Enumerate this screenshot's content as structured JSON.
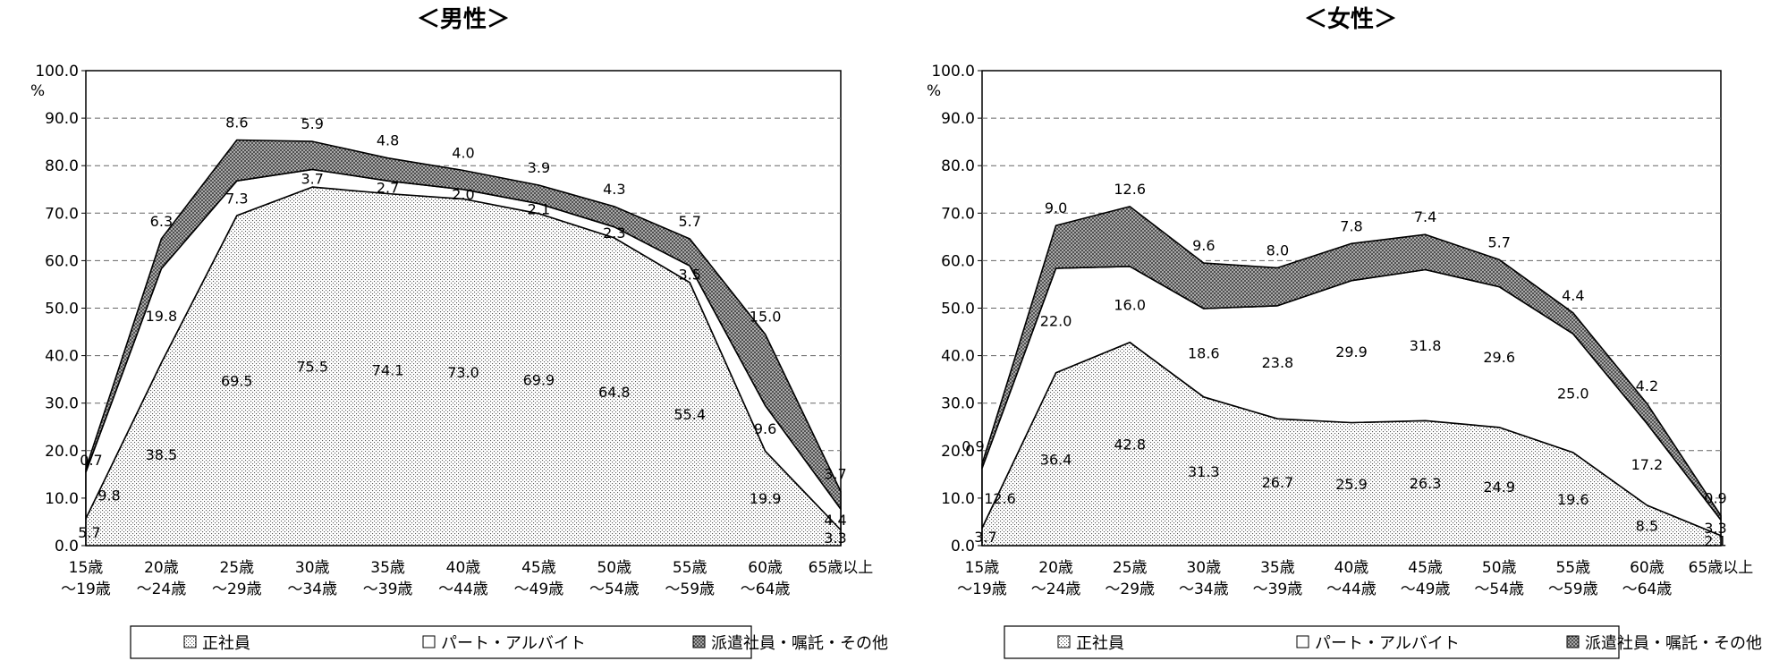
{
  "chart_data": [
    {
      "type": "area",
      "stacked": true,
      "title": "＜男性＞",
      "ylabel": "%",
      "ylim": [
        0,
        100
      ],
      "ytick_labels": [
        "0.0",
        "10.0",
        "20.0",
        "30.0",
        "40.0",
        "50.0",
        "60.0",
        "70.0",
        "80.0",
        "90.0",
        "100.0"
      ],
      "grid": "horizontal dashed",
      "categories": [
        [
          "15歳",
          "～19歳"
        ],
        [
          "20歳",
          "～24歳"
        ],
        [
          "25歳",
          "～29歳"
        ],
        [
          "30歳",
          "～34歳"
        ],
        [
          "35歳",
          "～39歳"
        ],
        [
          "40歳",
          "～44歳"
        ],
        [
          "45歳",
          "～49歳"
        ],
        [
          "50歳",
          "～54歳"
        ],
        [
          "55歳",
          "～59歳"
        ],
        [
          "60歳",
          "～64歳"
        ],
        [
          "65歳以上",
          ""
        ]
      ],
      "series": [
        {
          "name": "正社員",
          "values": [
            5.7,
            38.5,
            69.5,
            75.5,
            74.1,
            73.0,
            69.9,
            64.8,
            55.4,
            19.9,
            3.3
          ],
          "labels": [
            "5.7",
            "38.5",
            "69.5",
            "75.5",
            "74.1",
            "73.0",
            "69.9",
            "64.8",
            "55.4",
            "19.9",
            "3.3"
          ]
        },
        {
          "name": "パート・アルバイト",
          "values": [
            9.8,
            19.8,
            7.3,
            3.7,
            2.7,
            2.0,
            2.1,
            2.3,
            3.5,
            9.6,
            4.4
          ],
          "labels": [
            "9.8",
            "19.8",
            "7.3",
            "3.7",
            "2.7",
            "2.0",
            "2.1",
            "2.3",
            "3.5",
            "9.6",
            "4.4"
          ]
        },
        {
          "name": "派遣社員・嘱託・その他",
          "values": [
            0.7,
            6.3,
            8.6,
            5.9,
            4.8,
            4.0,
            3.9,
            4.3,
            5.7,
            15.0,
            3.7
          ],
          "labels": [
            "0.7",
            "6.3",
            "8.6",
            "5.9",
            "4.8",
            "4.0",
            "3.9",
            "4.3",
            "5.7",
            "15.0",
            "3.7"
          ]
        }
      ],
      "legend_position": "bottom"
    },
    {
      "type": "area",
      "stacked": true,
      "title": "＜女性＞",
      "ylabel": "%",
      "ylim": [
        0,
        100
      ],
      "ytick_labels": [
        "0.0",
        "10.0",
        "20.0",
        "30.0",
        "40.0",
        "50.0",
        "60.0",
        "70.0",
        "80.0",
        "90.0",
        "100.0"
      ],
      "grid": "horizontal dashed",
      "categories": [
        [
          "15歳",
          "～19歳"
        ],
        [
          "20歳",
          "～24歳"
        ],
        [
          "25歳",
          "～29歳"
        ],
        [
          "30歳",
          "～34歳"
        ],
        [
          "35歳",
          "～39歳"
        ],
        [
          "40歳",
          "～44歳"
        ],
        [
          "45歳",
          "～49歳"
        ],
        [
          "50歳",
          "～54歳"
        ],
        [
          "55歳",
          "～59歳"
        ],
        [
          "60歳",
          "～64歳"
        ],
        [
          "65歳以上",
          ""
        ]
      ],
      "series": [
        {
          "name": "正社員",
          "values": [
            3.7,
            36.4,
            42.8,
            31.3,
            26.7,
            25.9,
            26.3,
            24.9,
            19.6,
            8.5,
            2.1
          ],
          "labels": [
            "3.7",
            "36.4",
            "42.8",
            "31.3",
            "26.7",
            "25.9",
            "26.3",
            "24.9",
            "19.6",
            "8.5",
            "2.1"
          ]
        },
        {
          "name": "パート・アルバイト",
          "values": [
            12.6,
            22.0,
            16.0,
            18.6,
            23.8,
            29.9,
            31.8,
            29.6,
            25.0,
            17.2,
            3.3
          ],
          "labels": [
            "12.6",
            "22.0",
            "16.0",
            "18.6",
            "23.8",
            "29.9",
            "31.8",
            "29.6",
            "25.0",
            "17.2",
            "3.3"
          ]
        },
        {
          "name": "派遣社員・嘱託・その他",
          "values": [
            0.9,
            9.0,
            12.6,
            9.6,
            8.0,
            7.8,
            7.4,
            5.7,
            4.4,
            4.2,
            0.9
          ],
          "labels": [
            "0.9",
            "9.0",
            "12.6",
            "9.6",
            "8.0",
            "7.8",
            "7.4",
            "5.7",
            "4.4",
            "4.2",
            "0.9"
          ]
        }
      ],
      "legend_position": "bottom"
    }
  ]
}
